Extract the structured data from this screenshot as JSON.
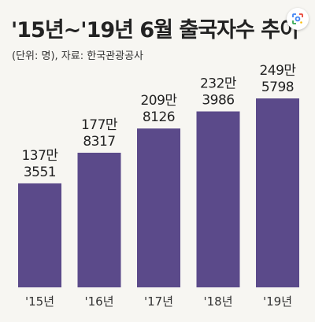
{
  "title": "'15년~'19년 6월 출국자수 추이",
  "subtitle": "(단위: 명), 자료: 한국관광공사",
  "colors": {
    "bar": "#5b4a8a",
    "background": "#f7f6f2",
    "text": "#222222"
  },
  "icons": {
    "lens": "google-lens-icon"
  },
  "chart_data": {
    "type": "bar",
    "title": "'15년~'19년 6월 출국자수 추이",
    "subtitle": "(단위: 명), 자료: 한국관광공사",
    "xlabel": "",
    "ylabel": "",
    "categories": [
      "'15년",
      "'16년",
      "'17년",
      "'18년",
      "'19년"
    ],
    "values": [
      1373551,
      1778317,
      2098126,
      2323986,
      2495798
    ],
    "value_labels": [
      [
        "137만",
        "3551"
      ],
      [
        "177만",
        "8317"
      ],
      [
        "209만",
        "8126"
      ],
      [
        "232만",
        "3986"
      ],
      [
        "249만",
        "5798"
      ]
    ],
    "ylim": [
      0,
      2495798
    ],
    "grid": false,
    "legend": "none"
  }
}
